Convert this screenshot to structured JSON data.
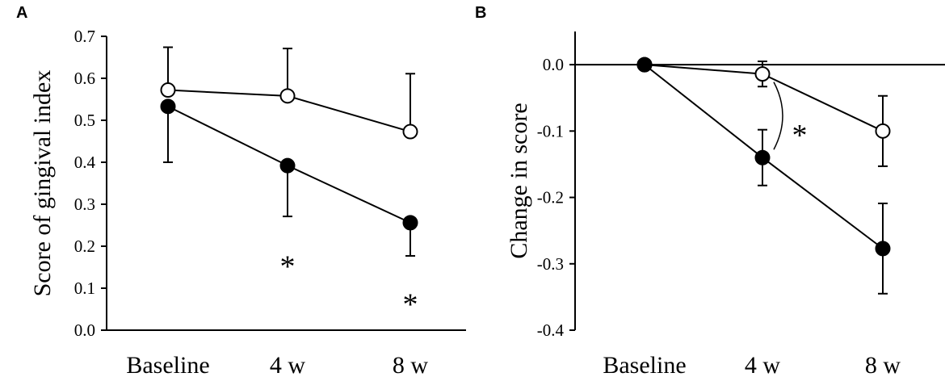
{
  "chart_data": [
    {
      "panel": "A",
      "type": "line",
      "title": "",
      "xlabel": "",
      "ylabel": "Score of gingival index",
      "categories": [
        "Baseline",
        "4 w",
        "8 w"
      ],
      "ylim": [
        0.0,
        0.7
      ],
      "yticks": [
        "0.0",
        "0.1",
        "0.2",
        "0.3",
        "0.4",
        "0.5",
        "0.6",
        "0.7"
      ],
      "grid": false,
      "legend": "none",
      "series": [
        {
          "marker": "open",
          "values": [
            0.572,
            0.558,
            0.473
          ],
          "err_up": [
            0.102,
            0.113,
            0.138
          ],
          "err_down": [
            0,
            0,
            0
          ]
        },
        {
          "marker": "filled",
          "values": [
            0.533,
            0.392,
            0.256
          ],
          "err_up": [
            0,
            0,
            0
          ],
          "err_down": [
            0.133,
            0.121,
            0.079
          ]
        }
      ],
      "annotations": [
        {
          "text": "*",
          "category": "4 w",
          "y": 0.17
        },
        {
          "text": "*",
          "category": "8 w",
          "y": 0.08
        }
      ]
    },
    {
      "panel": "B",
      "type": "line",
      "title": "",
      "xlabel": "",
      "ylabel": "Change in score",
      "categories": [
        "Baseline",
        "4 w",
        "8 w"
      ],
      "ylim": [
        -0.4,
        0.05
      ],
      "yticks": [
        "0.0",
        "-0.1",
        "-0.2",
        "-0.3",
        "-0.4"
      ],
      "grid": false,
      "legend": "none",
      "series": [
        {
          "marker": "open",
          "values": [
            0.0,
            -0.014,
            -0.1
          ],
          "err_up": [
            0,
            0.019,
            0.053
          ],
          "err_down": [
            0,
            0.019,
            0.053
          ]
        },
        {
          "marker": "filled",
          "values": [
            0.0,
            -0.14,
            -0.277
          ],
          "err_up": [
            0,
            0.042,
            0.068
          ],
          "err_down": [
            0,
            0.042,
            0.068
          ]
        }
      ],
      "annotations": [
        {
          "text": "*",
          "category": "4 w",
          "y": -0.095
        }
      ]
    }
  ]
}
